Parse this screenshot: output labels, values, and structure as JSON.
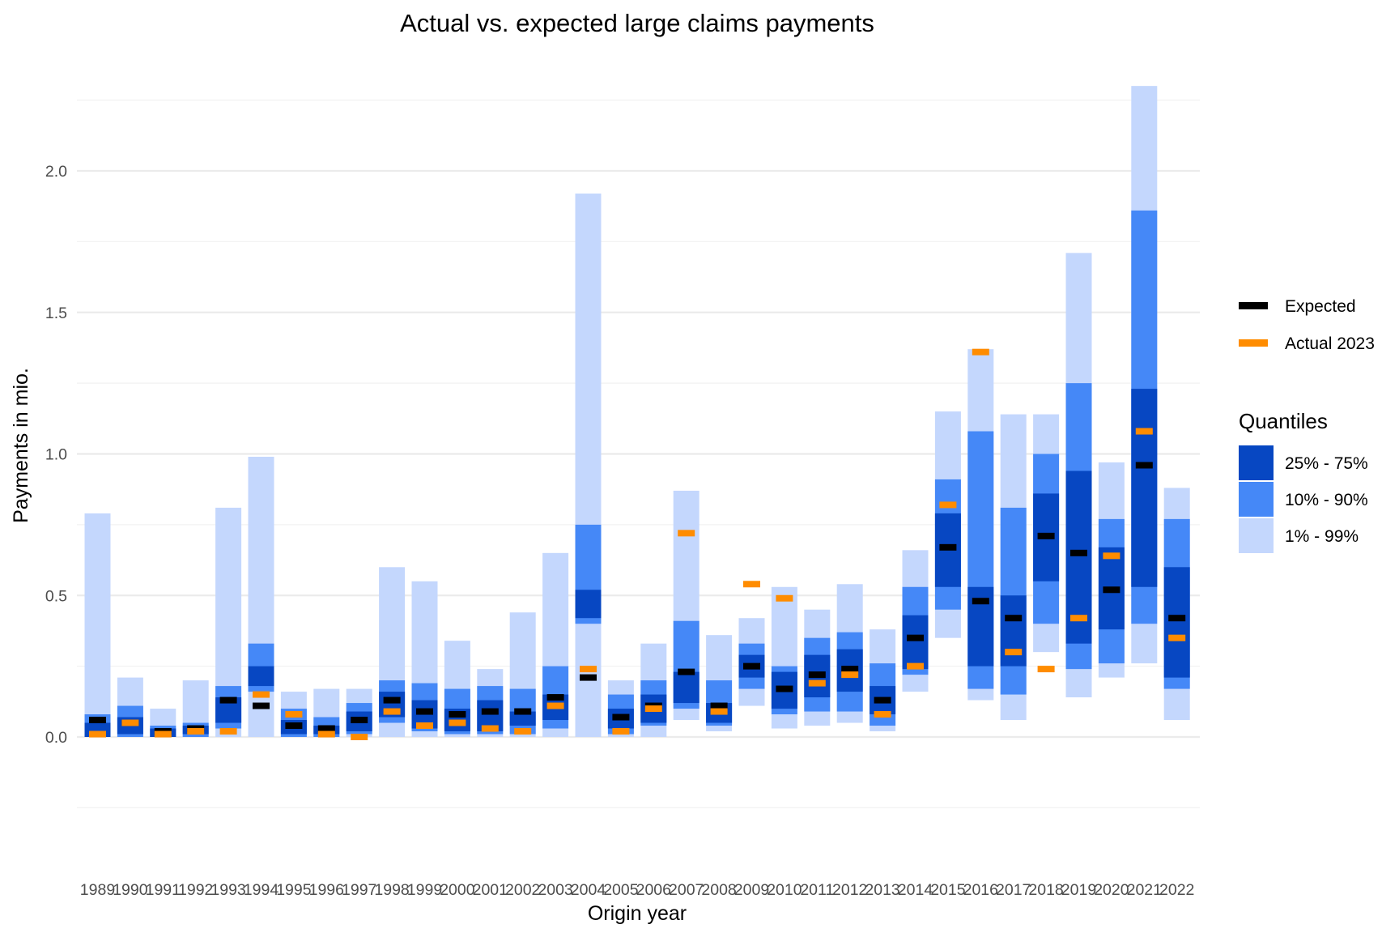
{
  "chart_data": {
    "type": "bar",
    "title": "Actual vs. expected large claims payments",
    "xlabel": "Origin year",
    "ylabel": "Payments in mio.",
    "ylim": [
      -0.25,
      2.3
    ],
    "yticks": [
      0.0,
      0.5,
      1.0,
      1.5,
      2.0
    ],
    "ytick_labels": [
      "0.0",
      "0.5",
      "1.0",
      "1.5",
      "2.0"
    ],
    "grid": true,
    "legend_position": "right",
    "colors": {
      "q25_75": "#0747c2",
      "q10_90": "#4588f7",
      "q01_99": "#c4d7fd",
      "expected": "#000000",
      "actual": "#ff8c00"
    },
    "legend_markers": [
      {
        "key": "expected",
        "label": "Expected"
      },
      {
        "key": "actual",
        "label": "Actual 2023"
      }
    ],
    "quantiles_title": "Quantiles",
    "quantiles_legend": [
      {
        "key": "q25_75",
        "label": "25% - 75%"
      },
      {
        "key": "q10_90",
        "label": "10% - 90%"
      },
      {
        "key": "q01_99",
        "label": "1% - 99%"
      }
    ],
    "categories": [
      "1989",
      "1990",
      "1991",
      "1992",
      "1993",
      "1994",
      "1995",
      "1996",
      "1997",
      "1998",
      "1999",
      "2000",
      "2001",
      "2002",
      "2003",
      "2004",
      "2005",
      "2006",
      "2007",
      "2008",
      "2009",
      "2010",
      "2011",
      "2012",
      "2013",
      "2014",
      "2015",
      "2016",
      "2017",
      "2018",
      "2019",
      "2020",
      "2021",
      "2022"
    ],
    "q01_99": [
      [
        0.0,
        0.79
      ],
      [
        0.0,
        0.21
      ],
      [
        0.0,
        0.1
      ],
      [
        0.0,
        0.2
      ],
      [
        0.0,
        0.81
      ],
      [
        0.0,
        0.99
      ],
      [
        0.0,
        0.16
      ],
      [
        0.0,
        0.17
      ],
      [
        0.0,
        0.17
      ],
      [
        0.0,
        0.6
      ],
      [
        0.0,
        0.55
      ],
      [
        0.0,
        0.34
      ],
      [
        0.0,
        0.24
      ],
      [
        0.0,
        0.44
      ],
      [
        0.0,
        0.65
      ],
      [
        0.0,
        1.92
      ],
      [
        0.0,
        0.2
      ],
      [
        0.0,
        0.33
      ],
      [
        0.06,
        0.87
      ],
      [
        0.02,
        0.36
      ],
      [
        0.11,
        0.42
      ],
      [
        0.03,
        0.53
      ],
      [
        0.04,
        0.45
      ],
      [
        0.05,
        0.54
      ],
      [
        0.02,
        0.38
      ],
      [
        0.16,
        0.66
      ],
      [
        0.35,
        1.15
      ],
      [
        0.13,
        1.37
      ],
      [
        0.06,
        1.14
      ],
      [
        0.3,
        1.14
      ],
      [
        0.14,
        1.71
      ],
      [
        0.21,
        0.97
      ],
      [
        0.26,
        2.3
      ],
      [
        0.06,
        0.88
      ]
    ],
    "q10_90": [
      [
        0.0,
        0.08
      ],
      [
        0.0,
        0.11
      ],
      [
        0.0,
        0.04
      ],
      [
        0.0,
        0.05
      ],
      [
        0.03,
        0.18
      ],
      [
        0.16,
        0.33
      ],
      [
        0.0,
        0.1
      ],
      [
        0.0,
        0.07
      ],
      [
        0.01,
        0.12
      ],
      [
        0.05,
        0.2
      ],
      [
        0.02,
        0.19
      ],
      [
        0.01,
        0.17
      ],
      [
        0.01,
        0.18
      ],
      [
        0.01,
        0.17
      ],
      [
        0.03,
        0.25
      ],
      [
        0.4,
        0.75
      ],
      [
        0.01,
        0.15
      ],
      [
        0.04,
        0.2
      ],
      [
        0.1,
        0.41
      ],
      [
        0.04,
        0.2
      ],
      [
        0.17,
        0.33
      ],
      [
        0.08,
        0.25
      ],
      [
        0.09,
        0.35
      ],
      [
        0.09,
        0.37
      ],
      [
        0.04,
        0.26
      ],
      [
        0.22,
        0.53
      ],
      [
        0.45,
        0.91
      ],
      [
        0.17,
        1.08
      ],
      [
        0.15,
        0.81
      ],
      [
        0.4,
        1.0
      ],
      [
        0.24,
        1.25
      ],
      [
        0.26,
        0.77
      ],
      [
        0.4,
        1.86
      ],
      [
        0.17,
        0.77
      ]
    ],
    "q25_75": [
      [
        0.0,
        0.05
      ],
      [
        0.01,
        0.07
      ],
      [
        0.0,
        0.03
      ],
      [
        0.01,
        0.04
      ],
      [
        0.05,
        0.14
      ],
      [
        0.18,
        0.25
      ],
      [
        0.01,
        0.06
      ],
      [
        0.01,
        0.04
      ],
      [
        0.02,
        0.09
      ],
      [
        0.07,
        0.16
      ],
      [
        0.03,
        0.13
      ],
      [
        0.02,
        0.1
      ],
      [
        0.02,
        0.13
      ],
      [
        0.04,
        0.09
      ],
      [
        0.06,
        0.15
      ],
      [
        0.42,
        0.52
      ],
      [
        0.03,
        0.1
      ],
      [
        0.05,
        0.15
      ],
      [
        0.12,
        0.23
      ],
      [
        0.05,
        0.12
      ],
      [
        0.21,
        0.29
      ],
      [
        0.1,
        0.23
      ],
      [
        0.14,
        0.29
      ],
      [
        0.16,
        0.31
      ],
      [
        0.08,
        0.18
      ],
      [
        0.24,
        0.43
      ],
      [
        0.53,
        0.79
      ],
      [
        0.25,
        0.53
      ],
      [
        0.25,
        0.5
      ],
      [
        0.55,
        0.86
      ],
      [
        0.33,
        0.94
      ],
      [
        0.38,
        0.67
      ],
      [
        0.53,
        1.23
      ],
      [
        0.21,
        0.6
      ]
    ],
    "expected": [
      0.06,
      0.05,
      0.02,
      0.03,
      0.13,
      0.11,
      0.04,
      0.03,
      0.06,
      0.13,
      0.09,
      0.08,
      0.09,
      0.09,
      0.14,
      0.21,
      0.07,
      0.11,
      0.23,
      0.11,
      0.25,
      0.17,
      0.22,
      0.24,
      0.13,
      0.35,
      0.67,
      0.48,
      0.42,
      0.71,
      0.65,
      0.52,
      0.96,
      0.42
    ],
    "actual": [
      0.01,
      0.05,
      0.01,
      0.02,
      0.02,
      0.15,
      0.08,
      0.01,
      0.0,
      0.09,
      0.04,
      0.05,
      0.03,
      0.02,
      0.11,
      0.24,
      0.02,
      0.1,
      0.72,
      0.09,
      0.54,
      0.49,
      0.19,
      0.22,
      0.08,
      0.25,
      0.82,
      1.36,
      0.3,
      0.24,
      0.42,
      0.64,
      1.08,
      0.35
    ]
  }
}
